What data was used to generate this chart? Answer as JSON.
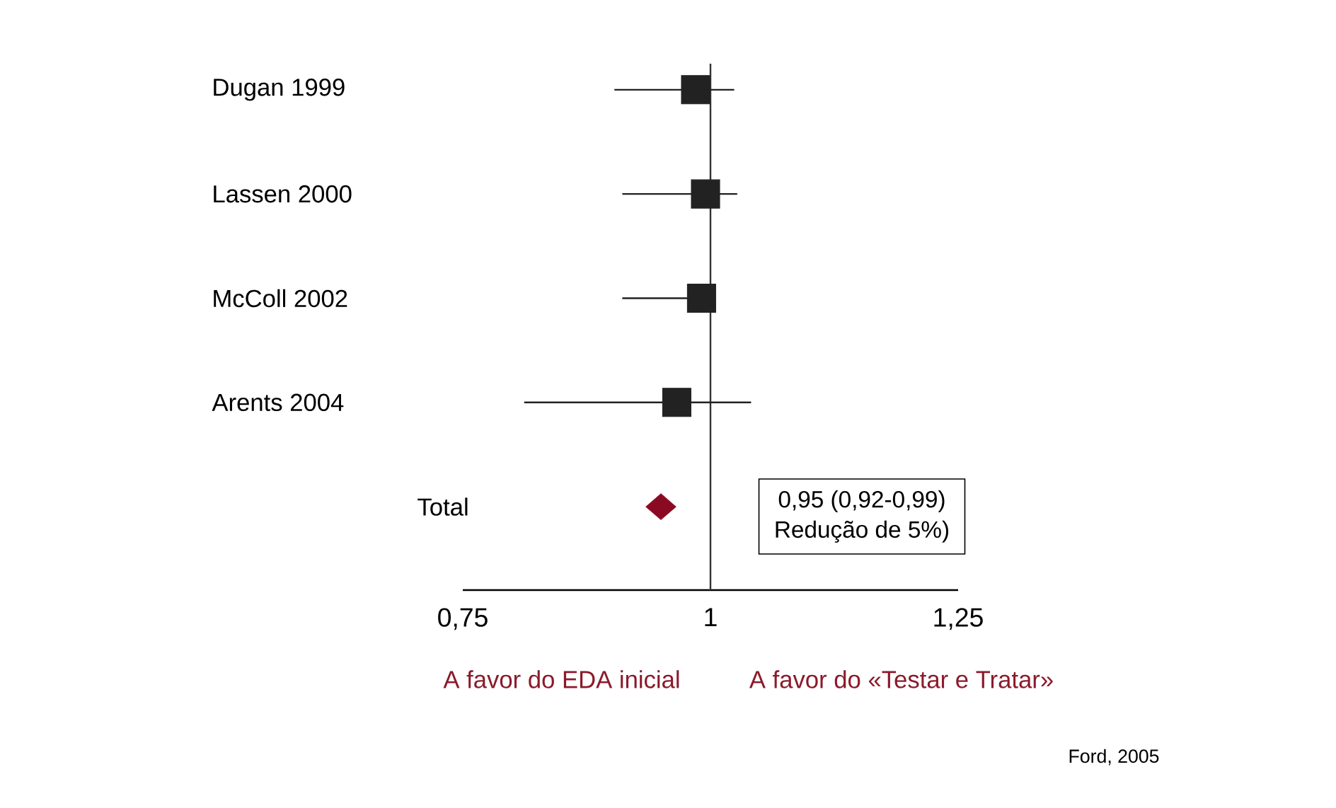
{
  "chart_data": {
    "type": "scatter",
    "orientation": "horizontal",
    "categories": [
      "Dugan 1999",
      "Lassen 2000",
      "McColl 2002",
      "Arents 2004",
      "Total"
    ],
    "series": [
      {
        "color": "#222222",
        "marker": "square",
        "values": [
          0.985,
          0.995,
          0.991,
          0.966,
          null
        ],
        "errors": [
          [
            0.903,
            1.024
          ],
          [
            0.911,
            1.027
          ],
          [
            0.911,
            0.991
          ],
          [
            0.812,
            1.041
          ],
          null
        ]
      },
      {
        "color": "#8b0a23",
        "marker": "diamond",
        "values": [
          null,
          null,
          null,
          null,
          0.95
        ]
      }
    ],
    "xlim": [
      0.75,
      1.25
    ],
    "xticks": [
      {
        "value": 0.75,
        "label": "0,75"
      },
      1,
      {
        "value": 1.25,
        "label": "1,25"
      }
    ],
    "ref_lines": [
      {
        "axis": "x",
        "value": 1
      }
    ],
    "annotations": [
      "0,95 (0,92-0,99)",
      "Redução de 5%)",
      "A favor do EDA inicial",
      "A favor do «Testar e Tratar»",
      "Ford, 2005"
    ]
  }
}
